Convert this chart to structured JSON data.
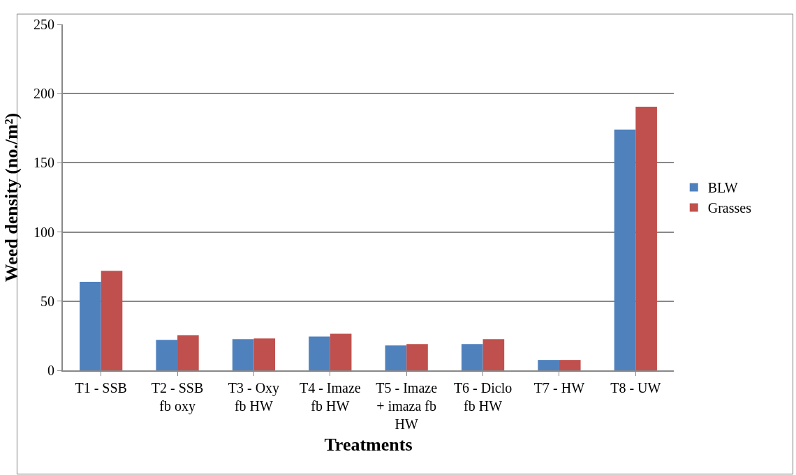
{
  "chart_data": {
    "type": "bar",
    "xlabel": "Treatments",
    "ylabel": "Weed density (no./m²)",
    "categories": [
      "T1 - SSB",
      "T2 - SSB fb oxy",
      "T3 - Oxy fb HW",
      "T4 - Imaze fb HW",
      "T5 - Imaze + imaza fb HW",
      "T6 - Diclo fb HW",
      "T7 - HW",
      "T8 - UW"
    ],
    "series": [
      {
        "name": "BLW",
        "color": "#4f81bd",
        "values": [
          64,
          22,
          22.5,
          24.5,
          18,
          19,
          7.5,
          174
        ]
      },
      {
        "name": "Grasses",
        "color": "#c0504d",
        "values": [
          72,
          25.5,
          23,
          26.5,
          19,
          22.5,
          7.5,
          190.5
        ]
      }
    ],
    "ylim": [
      0,
      250
    ],
    "yticks": [
      0,
      50,
      100,
      150,
      200,
      250
    ],
    "grid": "y",
    "legend": "right"
  }
}
